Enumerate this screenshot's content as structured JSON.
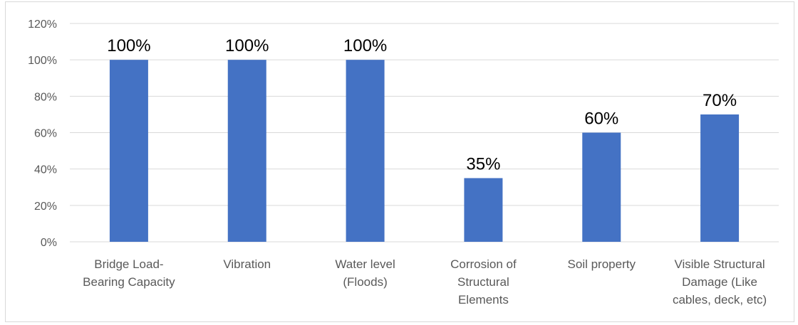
{
  "chart_data": {
    "type": "bar",
    "categories": [
      [
        "Bridge Load-",
        "Bearing Capacity"
      ],
      [
        "Vibration"
      ],
      [
        "Water level",
        "(Floods)"
      ],
      [
        "Corrosion of",
        "Structural",
        "Elements"
      ],
      [
        "Soil property"
      ],
      [
        "Visible Structural",
        "Damage (Like",
        "cables, deck, etc)"
      ]
    ],
    "values": [
      100,
      100,
      100,
      35,
      60,
      70
    ],
    "data_labels": [
      "100%",
      "100%",
      "100%",
      "35%",
      "60%",
      "70%"
    ],
    "ylim": [
      0,
      120
    ],
    "yticks": [
      "0%",
      "20%",
      "40%",
      "60%",
      "80%",
      "100%",
      "120%"
    ],
    "grid": true,
    "bar_color": "#4472c4",
    "grid_color": "#d9d9d9",
    "title": "",
    "xlabel": "",
    "ylabel": ""
  }
}
